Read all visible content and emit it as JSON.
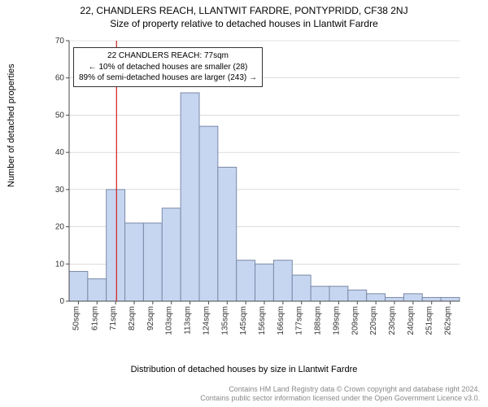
{
  "titles": {
    "main": "22, CHANDLERS REACH, LLANTWIT FARDRE, PONTYPRIDD, CF38 2NJ",
    "sub": "Size of property relative to detached houses in Llantwit Fardre"
  },
  "axes": {
    "y_label": "Number of detached properties",
    "x_label": "Distribution of detached houses by size in Llantwit Fardre",
    "y_min": 0,
    "y_max": 70,
    "y_tick_step": 10,
    "x_ticks": [
      "50sqm",
      "61sqm",
      "71sqm",
      "82sqm",
      "92sqm",
      "103sqm",
      "113sqm",
      "124sqm",
      "135sqm",
      "145sqm",
      "156sqm",
      "166sqm",
      "177sqm",
      "188sqm",
      "199sqm",
      "209sqm",
      "220sqm",
      "230sqm",
      "240sqm",
      "251sqm",
      "262sqm"
    ]
  },
  "histogram": {
    "type": "histogram",
    "bar_fill": "#c7d6f0",
    "bar_stroke": "#7a8aa8",
    "bar_stroke_width": 1,
    "values": [
      8,
      6,
      30,
      21,
      21,
      25,
      56,
      47,
      36,
      11,
      10,
      11,
      7,
      4,
      4,
      3,
      2,
      1,
      2,
      1,
      1
    ],
    "bar_gap_ratio": 0.0
  },
  "marker": {
    "line_color": "#d01c1c",
    "line_width": 1.2,
    "bin_index_position": 2.55
  },
  "annotation": {
    "line1": "22 CHANDLERS REACH: 77sqm",
    "line2": "← 10% of detached houses are smaller (28)",
    "line3": "89% of semi-detached houses are larger (243) →",
    "box_border_color": "#333333",
    "font_size": 10
  },
  "grid": {
    "color": "#c8c8c8",
    "width": 0.6
  },
  "footer": {
    "line1": "Contains HM Land Registry data © Crown copyright and database right 2024.",
    "line2": "Contains public sector information licensed under the Open Government Licence v3.0.",
    "color": "#888888"
  },
  "plot": {
    "inner_width": 500,
    "inner_height": 330,
    "background_color": "#ffffff",
    "axis_stroke": "#4a4a4a",
    "tick_font_size": 10
  }
}
